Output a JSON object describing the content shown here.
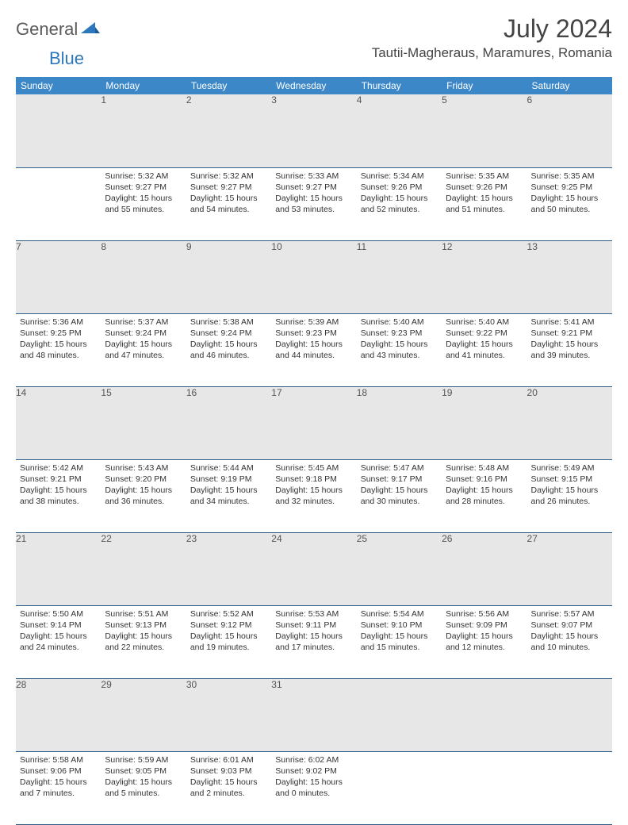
{
  "brand": {
    "general": "General",
    "blue": "Blue"
  },
  "title": "July 2024",
  "location": "Tautii-Magheraus, Maramures, Romania",
  "colors": {
    "header_bg": "#3b87c8",
    "header_text": "#ffffff",
    "daynum_bg": "#e7e7e7",
    "border": "#2f5d8a",
    "logo_gray": "#5a5a5a",
    "logo_blue": "#2d77bd"
  },
  "day_headers": [
    "Sunday",
    "Monday",
    "Tuesday",
    "Wednesday",
    "Thursday",
    "Friday",
    "Saturday"
  ],
  "weeks": [
    {
      "nums": [
        "",
        "1",
        "2",
        "3",
        "4",
        "5",
        "6"
      ],
      "cells": [
        null,
        {
          "sunrise": "Sunrise: 5:32 AM",
          "sunset": "Sunset: 9:27 PM",
          "daylight": "Daylight: 15 hours and 55 minutes."
        },
        {
          "sunrise": "Sunrise: 5:32 AM",
          "sunset": "Sunset: 9:27 PM",
          "daylight": "Daylight: 15 hours and 54 minutes."
        },
        {
          "sunrise": "Sunrise: 5:33 AM",
          "sunset": "Sunset: 9:27 PM",
          "daylight": "Daylight: 15 hours and 53 minutes."
        },
        {
          "sunrise": "Sunrise: 5:34 AM",
          "sunset": "Sunset: 9:26 PM",
          "daylight": "Daylight: 15 hours and 52 minutes."
        },
        {
          "sunrise": "Sunrise: 5:35 AM",
          "sunset": "Sunset: 9:26 PM",
          "daylight": "Daylight: 15 hours and 51 minutes."
        },
        {
          "sunrise": "Sunrise: 5:35 AM",
          "sunset": "Sunset: 9:25 PM",
          "daylight": "Daylight: 15 hours and 50 minutes."
        }
      ]
    },
    {
      "nums": [
        "7",
        "8",
        "9",
        "10",
        "11",
        "12",
        "13"
      ],
      "cells": [
        {
          "sunrise": "Sunrise: 5:36 AM",
          "sunset": "Sunset: 9:25 PM",
          "daylight": "Daylight: 15 hours and 48 minutes."
        },
        {
          "sunrise": "Sunrise: 5:37 AM",
          "sunset": "Sunset: 9:24 PM",
          "daylight": "Daylight: 15 hours and 47 minutes."
        },
        {
          "sunrise": "Sunrise: 5:38 AM",
          "sunset": "Sunset: 9:24 PM",
          "daylight": "Daylight: 15 hours and 46 minutes."
        },
        {
          "sunrise": "Sunrise: 5:39 AM",
          "sunset": "Sunset: 9:23 PM",
          "daylight": "Daylight: 15 hours and 44 minutes."
        },
        {
          "sunrise": "Sunrise: 5:40 AM",
          "sunset": "Sunset: 9:23 PM",
          "daylight": "Daylight: 15 hours and 43 minutes."
        },
        {
          "sunrise": "Sunrise: 5:40 AM",
          "sunset": "Sunset: 9:22 PM",
          "daylight": "Daylight: 15 hours and 41 minutes."
        },
        {
          "sunrise": "Sunrise: 5:41 AM",
          "sunset": "Sunset: 9:21 PM",
          "daylight": "Daylight: 15 hours and 39 minutes."
        }
      ]
    },
    {
      "nums": [
        "14",
        "15",
        "16",
        "17",
        "18",
        "19",
        "20"
      ],
      "cells": [
        {
          "sunrise": "Sunrise: 5:42 AM",
          "sunset": "Sunset: 9:21 PM",
          "daylight": "Daylight: 15 hours and 38 minutes."
        },
        {
          "sunrise": "Sunrise: 5:43 AM",
          "sunset": "Sunset: 9:20 PM",
          "daylight": "Daylight: 15 hours and 36 minutes."
        },
        {
          "sunrise": "Sunrise: 5:44 AM",
          "sunset": "Sunset: 9:19 PM",
          "daylight": "Daylight: 15 hours and 34 minutes."
        },
        {
          "sunrise": "Sunrise: 5:45 AM",
          "sunset": "Sunset: 9:18 PM",
          "daylight": "Daylight: 15 hours and 32 minutes."
        },
        {
          "sunrise": "Sunrise: 5:47 AM",
          "sunset": "Sunset: 9:17 PM",
          "daylight": "Daylight: 15 hours and 30 minutes."
        },
        {
          "sunrise": "Sunrise: 5:48 AM",
          "sunset": "Sunset: 9:16 PM",
          "daylight": "Daylight: 15 hours and 28 minutes."
        },
        {
          "sunrise": "Sunrise: 5:49 AM",
          "sunset": "Sunset: 9:15 PM",
          "daylight": "Daylight: 15 hours and 26 minutes."
        }
      ]
    },
    {
      "nums": [
        "21",
        "22",
        "23",
        "24",
        "25",
        "26",
        "27"
      ],
      "cells": [
        {
          "sunrise": "Sunrise: 5:50 AM",
          "sunset": "Sunset: 9:14 PM",
          "daylight": "Daylight: 15 hours and 24 minutes."
        },
        {
          "sunrise": "Sunrise: 5:51 AM",
          "sunset": "Sunset: 9:13 PM",
          "daylight": "Daylight: 15 hours and 22 minutes."
        },
        {
          "sunrise": "Sunrise: 5:52 AM",
          "sunset": "Sunset: 9:12 PM",
          "daylight": "Daylight: 15 hours and 19 minutes."
        },
        {
          "sunrise": "Sunrise: 5:53 AM",
          "sunset": "Sunset: 9:11 PM",
          "daylight": "Daylight: 15 hours and 17 minutes."
        },
        {
          "sunrise": "Sunrise: 5:54 AM",
          "sunset": "Sunset: 9:10 PM",
          "daylight": "Daylight: 15 hours and 15 minutes."
        },
        {
          "sunrise": "Sunrise: 5:56 AM",
          "sunset": "Sunset: 9:09 PM",
          "daylight": "Daylight: 15 hours and 12 minutes."
        },
        {
          "sunrise": "Sunrise: 5:57 AM",
          "sunset": "Sunset: 9:07 PM",
          "daylight": "Daylight: 15 hours and 10 minutes."
        }
      ]
    },
    {
      "nums": [
        "28",
        "29",
        "30",
        "31",
        "",
        "",
        ""
      ],
      "cells": [
        {
          "sunrise": "Sunrise: 5:58 AM",
          "sunset": "Sunset: 9:06 PM",
          "daylight": "Daylight: 15 hours and 7 minutes."
        },
        {
          "sunrise": "Sunrise: 5:59 AM",
          "sunset": "Sunset: 9:05 PM",
          "daylight": "Daylight: 15 hours and 5 minutes."
        },
        {
          "sunrise": "Sunrise: 6:01 AM",
          "sunset": "Sunset: 9:03 PM",
          "daylight": "Daylight: 15 hours and 2 minutes."
        },
        {
          "sunrise": "Sunrise: 6:02 AM",
          "sunset": "Sunset: 9:02 PM",
          "daylight": "Daylight: 15 hours and 0 minutes."
        },
        null,
        null,
        null
      ]
    }
  ]
}
